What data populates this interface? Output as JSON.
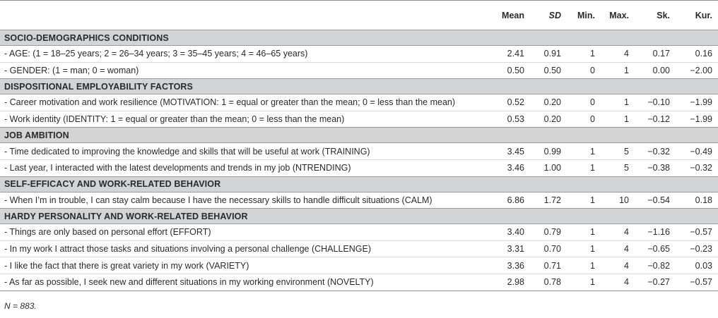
{
  "header": {
    "label": "",
    "mean": "Mean",
    "sd": "SD",
    "min": "Min.",
    "max": "Max.",
    "sk": "Sk.",
    "kur": "Kur."
  },
  "sections": [
    {
      "title": "SOCIO-DEMOGRAPHICS CONDITIONS",
      "rows": [
        {
          "label": "- AGE: (1 = 18–25 years; 2 = 26–34 years; 3 = 35–45 years; 4 = 46–65 years)",
          "mean": "2.41",
          "sd": "0.91",
          "min": "1",
          "max": "4",
          "sk": "0.17",
          "kur": "0.16"
        },
        {
          "label": "- GENDER: (1 = man; 0 = woman)",
          "mean": "0.50",
          "sd": "0.50",
          "min": "0",
          "max": "1",
          "sk": "0.00",
          "kur": "−2.00"
        }
      ]
    },
    {
      "title": "DISPOSITIONAL EMPLOYABILITY FACTORS",
      "rows": [
        {
          "label": "- Career motivation and work resilience (MOTIVATION: 1 = equal or greater than the mean; 0 = less than the mean)",
          "mean": "0.52",
          "sd": "0.20",
          "min": "0",
          "max": "1",
          "sk": "−0.10",
          "kur": "−1.99"
        },
        {
          "label": "- Work identity (IDENTITY: 1 = equal or greater than the mean; 0 = less than the mean)",
          "mean": "0.53",
          "sd": "0.20",
          "min": "0",
          "max": "1",
          "sk": "−0.12",
          "kur": "−1.99"
        }
      ]
    },
    {
      "title": "JOB AMBITION",
      "rows": [
        {
          "label": "- Time dedicated to improving the knowledge and skills that will be useful at work (TRAINING)",
          "mean": "3.45",
          "sd": "0.99",
          "min": "1",
          "max": "5",
          "sk": "−0.32",
          "kur": "−0.49"
        },
        {
          "label": "- Last year, I interacted with the latest developments and trends in my job (NTRENDING)",
          "mean": "3.46",
          "sd": "1.00",
          "min": "1",
          "max": "5",
          "sk": "−0.38",
          "kur": "−0.32"
        }
      ]
    },
    {
      "title": "SELF-EFFICACY AND WORK-RELATED BEHAVIOR",
      "rows": [
        {
          "label": "- When I’m in trouble, I can stay calm because I have the necessary skills to handle difficult situations (CALM)",
          "mean": "6.86",
          "sd": "1.72",
          "min": "1",
          "max": "10",
          "sk": "−0.54",
          "kur": "0.18"
        }
      ]
    },
    {
      "title": "HARDY PERSONALITY AND WORK-RELATED BEHAVIOR",
      "rows": [
        {
          "label": "- Things are only based on personal effort (EFFORT)",
          "mean": "3.40",
          "sd": "0.79",
          "min": "1",
          "max": "4",
          "sk": "−1.16",
          "kur": "−0.57"
        },
        {
          "label": "- In my work I attract those tasks and situations involving a personal challenge (CHALLENGE)",
          "mean": "3.31",
          "sd": "0.70",
          "min": "1",
          "max": "4",
          "sk": "−0.65",
          "kur": "−0.23"
        },
        {
          "label": "- I like the fact that there is great variety in my work (VARIETY)",
          "mean": "3.36",
          "sd": "0.71",
          "min": "1",
          "max": "4",
          "sk": "−0.82",
          "kur": "0.03"
        },
        {
          "label": "- As far as possible, I seek new and different situations in my working environment (NOVELTY)",
          "mean": "2.98",
          "sd": "0.78",
          "min": "1",
          "max": "4",
          "sk": "−0.27",
          "kur": "−0.57"
        }
      ]
    }
  ],
  "note": "N = 883."
}
